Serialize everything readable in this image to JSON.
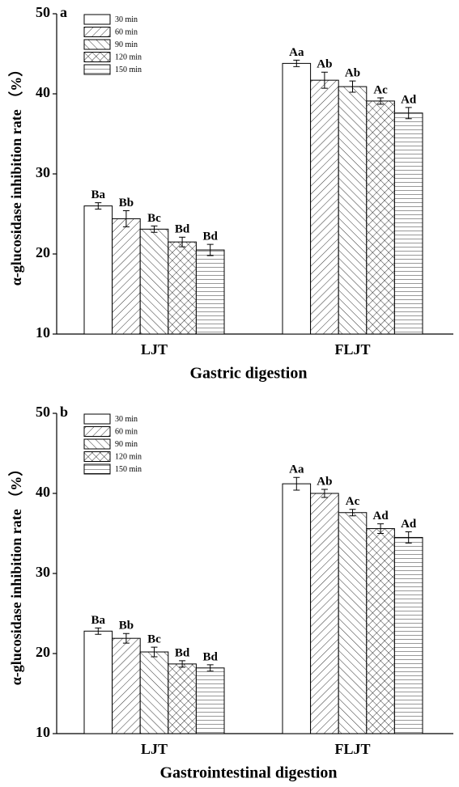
{
  "chart_data": [
    {
      "type": "bar",
      "panel": "a",
      "ylabel": "α-glucosidase inhibition rate （%）",
      "xlabel": "Gastric digestion",
      "categories": [
        "LJT",
        "FLJT"
      ],
      "ylim": [
        10,
        50
      ],
      "yticks": [
        10,
        20,
        30,
        40,
        50
      ],
      "series": [
        {
          "name": "30 min",
          "color": "#ffffff",
          "pattern": "none",
          "values": [
            26.0,
            43.8
          ],
          "errors": [
            0.4,
            0.4
          ],
          "labels": [
            "Ba",
            "Aa"
          ]
        },
        {
          "name": "60 min",
          "color": "#ffffff",
          "pattern": "diagonal-up",
          "values": [
            24.4,
            41.7
          ],
          "errors": [
            1.0,
            1.0
          ],
          "labels": [
            "Bb",
            "Ab"
          ]
        },
        {
          "name": "90 min",
          "color": "#ffffff",
          "pattern": "diagonal-down",
          "values": [
            23.1,
            40.9
          ],
          "errors": [
            0.4,
            0.7
          ],
          "labels": [
            "Bc",
            "Ab"
          ]
        },
        {
          "name": "120 min",
          "color": "#ffffff",
          "pattern": "crosshatch",
          "values": [
            21.5,
            39.1
          ],
          "errors": [
            0.6,
            0.4
          ],
          "labels": [
            "Bd",
            "Ac"
          ]
        },
        {
          "name": "150 min",
          "color": "#ffffff",
          "pattern": "horizontal",
          "values": [
            20.5,
            37.6
          ],
          "errors": [
            0.7,
            0.7
          ],
          "labels": [
            "Bd",
            "Ad"
          ]
        }
      ]
    },
    {
      "type": "bar",
      "panel": "b",
      "ylabel": "α-glucosidase inhibition rate （%）",
      "xlabel": "Gastrointestinal digestion",
      "categories": [
        "LJT",
        "FLJT"
      ],
      "ylim": [
        10,
        50
      ],
      "yticks": [
        10,
        20,
        30,
        40,
        50
      ],
      "series": [
        {
          "name": "30 min",
          "color": "#ffffff",
          "pattern": "none",
          "values": [
            22.8,
            41.2
          ],
          "errors": [
            0.4,
            0.8
          ],
          "labels": [
            "Ba",
            "Aa"
          ]
        },
        {
          "name": "60 min",
          "color": "#ffffff",
          "pattern": "diagonal-up",
          "values": [
            21.9,
            40.0
          ],
          "errors": [
            0.6,
            0.5
          ],
          "labels": [
            "Bb",
            "Ab"
          ]
        },
        {
          "name": "90 min",
          "color": "#ffffff",
          "pattern": "diagonal-down",
          "values": [
            20.2,
            37.6
          ],
          "errors": [
            0.6,
            0.4
          ],
          "labels": [
            "Bc",
            "Ac"
          ]
        },
        {
          "name": "120 min",
          "color": "#ffffff",
          "pattern": "crosshatch",
          "values": [
            18.7,
            35.6
          ],
          "errors": [
            0.4,
            0.6
          ],
          "labels": [
            "Bd",
            "Ad"
          ]
        },
        {
          "name": "150 min",
          "color": "#ffffff",
          "pattern": "horizontal",
          "values": [
            18.2,
            34.5
          ],
          "errors": [
            0.4,
            0.7
          ],
          "labels": [
            "Bd",
            "Ad"
          ]
        }
      ]
    }
  ]
}
